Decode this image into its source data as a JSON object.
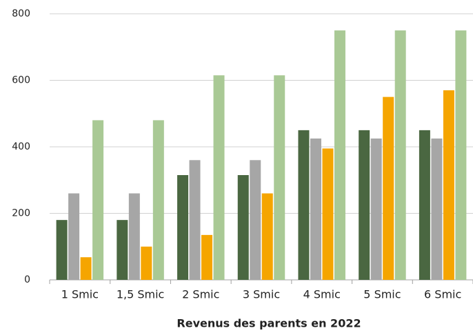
{
  "chart_data": {
    "type": "bar",
    "x_label": "Revenus des parents en 2022",
    "categories": [
      "1 Smic",
      "1,5 Smic",
      "2 Smic",
      "3 Smic",
      "4 Smic",
      "5 Smic",
      "6 Smic"
    ],
    "series": [
      {
        "color": "#4a6741",
        "values": [
          180,
          180,
          315,
          315,
          450,
          450,
          450
        ]
      },
      {
        "color": "#a6a6a6",
        "values": [
          260,
          260,
          360,
          360,
          425,
          425,
          425
        ]
      },
      {
        "color": "#f5a500",
        "values": [
          68,
          100,
          135,
          260,
          395,
          550,
          570
        ]
      },
      {
        "color": "#a9c995",
        "values": [
          480,
          480,
          615,
          615,
          750,
          750,
          750
        ]
      }
    ],
    "ylim": [
      0,
      800
    ],
    "yticks": [
      0,
      200,
      400,
      600,
      800
    ],
    "grid": true
  }
}
